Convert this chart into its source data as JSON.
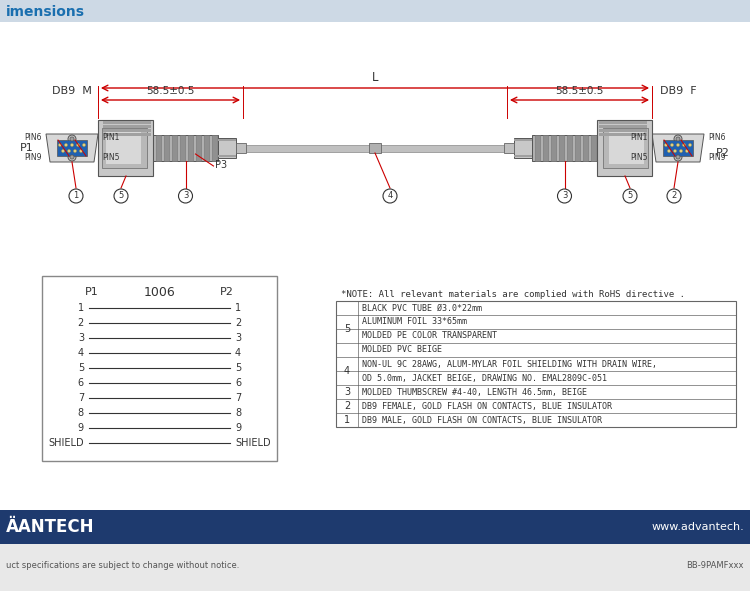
{
  "title": "imensions",
  "title_color": "#1a6faf",
  "white": "#ffffff",
  "light_gray": "#f2f2f2",
  "dark": "#333333",
  "mid_gray": "#888888",
  "red": "#cc0000",
  "bom_note": "*NOTE: All relevant materials are complied with RoHS directive .",
  "bom_rows": [
    {
      "item": "5",
      "sub": [
        "BLACK PVC TUBE Ø3.0*22mm",
        "ALUMINUM FOIL 33*65mm",
        "MOLDED PE COLOR TRANSPARENT",
        "MOLDED PVC BEIGE"
      ]
    },
    {
      "item": "4",
      "sub": [
        "NON-UL 9C 28AWG, ALUM-MYLAR FOIL SHIELDING WITH DRAIN WIRE, OD 5.0mm, JACKET BEIGE, DRAWING NO. EMAL2809C-051"
      ]
    },
    {
      "item": "3",
      "sub": [
        "MOLDED THUMBSCREW #4-40, LENGTH 46.5mm, BEIGE"
      ]
    },
    {
      "item": "2",
      "sub": [
        "DB9 FEMALE, GOLD FLASH ON CONTACTS, BLUE INSULATOR"
      ]
    },
    {
      "item": "1",
      "sub": [
        "DB9 MALE, GOLD FLASH ON CONTACTS, BLUE INSULATOR"
      ]
    }
  ],
  "bom_note2": "NON-UL 9C 28AWG, ALUM-MYLAR FOIL SHIELDING WITH DRAIN WIRE,",
  "bom_note2b": "OD 5.0mm, JACKET BEIGE, DRAWING NO. EMAL2809C-051",
  "wiring_title": "1006",
  "wiring_p1": "P1",
  "wiring_p2": "P2",
  "wiring_pins": [
    "1",
    "2",
    "3",
    "4",
    "5",
    "6",
    "7",
    "8",
    "9",
    "SHIELD"
  ],
  "dim_label": "58.5±0.5",
  "dim_l": "L",
  "adv_text": "ÄANTECH",
  "adv_url": "www.advantech.",
  "footer_left": "uct specifications are subject to change without notice.",
  "footer_right": "BB-9PAMFxxx",
  "footer_bg": "#1e3a6e",
  "subfooter_bg": "#e8e8e8"
}
